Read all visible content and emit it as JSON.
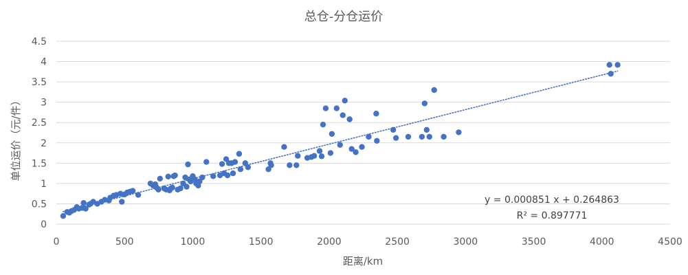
{
  "chart_data": {
    "type": "scatter",
    "title": "总仓-分仓运价",
    "xlabel": "距离/km",
    "ylabel": "单位运价（元/件）",
    "xlim": [
      0,
      4500
    ],
    "ylim": [
      0,
      4.5
    ],
    "x_ticks": [
      "0",
      "500",
      "1000",
      "1500",
      "2000",
      "2500",
      "3000",
      "3500",
      "4000",
      "4500"
    ],
    "y_ticks": [
      "0",
      "0.5",
      "1",
      "1.5",
      "2",
      "2.5",
      "3",
      "3.5",
      "4",
      "4.5"
    ],
    "grid": "horizontal",
    "trendline": {
      "type": "linear",
      "slope": 0.000851,
      "intercept": 0.264863,
      "style": "dotted",
      "equation": "y = 0.000851 x + 0.264863",
      "r_squared": "R² = 0.897771"
    },
    "colors": {
      "marker": "#4472C4",
      "trendline": "#4472C4",
      "grid": "#D9D9D9",
      "text": "#595959"
    },
    "points": [
      [
        50,
        0.2
      ],
      [
        80,
        0.3
      ],
      [
        95,
        0.28
      ],
      [
        110,
        0.32
      ],
      [
        130,
        0.35
      ],
      [
        150,
        0.42
      ],
      [
        165,
        0.38
      ],
      [
        190,
        0.4
      ],
      [
        200,
        0.52
      ],
      [
        215,
        0.38
      ],
      [
        240,
        0.48
      ],
      [
        250,
        0.5
      ],
      [
        270,
        0.55
      ],
      [
        300,
        0.5
      ],
      [
        330,
        0.55
      ],
      [
        355,
        0.6
      ],
      [
        385,
        0.58
      ],
      [
        395,
        0.65
      ],
      [
        420,
        0.7
      ],
      [
        440,
        0.72
      ],
      [
        470,
        0.75
      ],
      [
        480,
        0.55
      ],
      [
        500,
        0.73
      ],
      [
        520,
        0.78
      ],
      [
        540,
        0.8
      ],
      [
        560,
        0.82
      ],
      [
        600,
        0.72
      ],
      [
        690,
        1.0
      ],
      [
        710,
        0.95
      ],
      [
        725,
        0.98
      ],
      [
        735,
        0.9
      ],
      [
        748,
        0.85
      ],
      [
        760,
        1.12
      ],
      [
        790,
        0.88
      ],
      [
        805,
        0.85
      ],
      [
        820,
        1.17
      ],
      [
        830,
        0.83
      ],
      [
        840,
        0.88
      ],
      [
        850,
        0.9
      ],
      [
        860,
        1.18
      ],
      [
        870,
        1.2
      ],
      [
        890,
        0.85
      ],
      [
        910,
        0.88
      ],
      [
        930,
        1.0
      ],
      [
        945,
        1.15
      ],
      [
        955,
        0.92
      ],
      [
        965,
        1.47
      ],
      [
        975,
        1.1
      ],
      [
        985,
        1.05
      ],
      [
        1000,
        1.18
      ],
      [
        1015,
        1.1
      ],
      [
        1025,
        1.0
      ],
      [
        1040,
        0.95
      ],
      [
        1050,
        1.05
      ],
      [
        1070,
        1.15
      ],
      [
        1100,
        1.53
      ],
      [
        1150,
        1.18
      ],
      [
        1200,
        1.2
      ],
      [
        1215,
        1.48
      ],
      [
        1230,
        1.25
      ],
      [
        1245,
        1.6
      ],
      [
        1255,
        1.2
      ],
      [
        1265,
        1.5
      ],
      [
        1285,
        1.5
      ],
      [
        1295,
        1.25
      ],
      [
        1310,
        1.53
      ],
      [
        1340,
        1.73
      ],
      [
        1350,
        1.35
      ],
      [
        1385,
        1.5
      ],
      [
        1405,
        1.4
      ],
      [
        1555,
        1.35
      ],
      [
        1570,
        1.5
      ],
      [
        1575,
        1.45
      ],
      [
        1670,
        1.9
      ],
      [
        1710,
        1.45
      ],
      [
        1760,
        1.45
      ],
      [
        1770,
        1.68
      ],
      [
        1840,
        1.63
      ],
      [
        1870,
        1.65
      ],
      [
        1890,
        1.68
      ],
      [
        1930,
        1.8
      ],
      [
        1945,
        1.67
      ],
      [
        1955,
        2.45
      ],
      [
        1975,
        2.85
      ],
      [
        2010,
        1.75
      ],
      [
        2020,
        2.22
      ],
      [
        2055,
        2.85
      ],
      [
        2080,
        1.95
      ],
      [
        2100,
        2.68
      ],
      [
        2115,
        3.04
      ],
      [
        2150,
        2.58
      ],
      [
        2165,
        1.85
      ],
      [
        2195,
        1.77
      ],
      [
        2240,
        1.9
      ],
      [
        2290,
        2.15
      ],
      [
        2345,
        2.72
      ],
      [
        2350,
        2.05
      ],
      [
        2470,
        2.32
      ],
      [
        2490,
        2.12
      ],
      [
        2580,
        2.15
      ],
      [
        2680,
        2.15
      ],
      [
        2700,
        2.97
      ],
      [
        2715,
        2.32
      ],
      [
        2735,
        2.15
      ],
      [
        2770,
        3.3
      ],
      [
        2840,
        2.15
      ],
      [
        2950,
        2.26
      ],
      [
        4055,
        3.92
      ],
      [
        4065,
        3.7
      ],
      [
        4115,
        3.92
      ]
    ]
  }
}
